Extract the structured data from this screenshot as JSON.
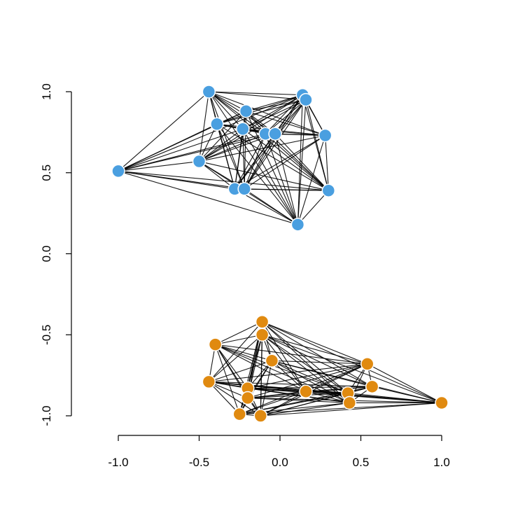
{
  "chart_data": {
    "type": "scatter",
    "title": "",
    "xlabel": "",
    "ylabel": "",
    "xlim": [
      -1.0,
      1.0
    ],
    "ylim": [
      -1.0,
      1.0
    ],
    "x_ticks": [
      -1.0,
      -0.5,
      0.0,
      0.5,
      1.0
    ],
    "y_ticks": [
      -1.0,
      -0.5,
      0.0,
      0.5,
      1.0
    ],
    "x_tick_labels": [
      "-1.0",
      "-0.5",
      "0.0",
      "0.5",
      "1.0"
    ],
    "y_tick_labels": [
      "-1.0",
      "-0.5",
      "0.0",
      "0.5",
      "1.0"
    ],
    "grid": false,
    "series": [
      {
        "color": "#4a9fe0",
        "nodes": [
          {
            "x": -0.44,
            "y": 1.0
          },
          {
            "x": 0.14,
            "y": 0.98
          },
          {
            "x": 0.16,
            "y": 0.95
          },
          {
            "x": -0.21,
            "y": 0.88
          },
          {
            "x": -0.39,
            "y": 0.8
          },
          {
            "x": -0.23,
            "y": 0.77
          },
          {
            "x": -0.09,
            "y": 0.74
          },
          {
            "x": -0.03,
            "y": 0.74
          },
          {
            "x": 0.28,
            "y": 0.73
          },
          {
            "x": -1.0,
            "y": 0.51
          },
          {
            "x": -0.5,
            "y": 0.57
          },
          {
            "x": -0.28,
            "y": 0.4
          },
          {
            "x": -0.22,
            "y": 0.4
          },
          {
            "x": 0.3,
            "y": 0.39
          },
          {
            "x": 0.11,
            "y": 0.18
          }
        ],
        "edges": [
          [
            0,
            1
          ],
          [
            0,
            2
          ],
          [
            0,
            3
          ],
          [
            0,
            4
          ],
          [
            0,
            5
          ],
          [
            0,
            6
          ],
          [
            0,
            7
          ],
          [
            0,
            8
          ],
          [
            0,
            9
          ],
          [
            0,
            10
          ],
          [
            0,
            11
          ],
          [
            0,
            12
          ],
          [
            0,
            13
          ],
          [
            0,
            14
          ],
          [
            1,
            2
          ],
          [
            1,
            3
          ],
          [
            1,
            4
          ],
          [
            1,
            5
          ],
          [
            1,
            6
          ],
          [
            1,
            7
          ],
          [
            1,
            8
          ],
          [
            1,
            9
          ],
          [
            1,
            10
          ],
          [
            1,
            11
          ],
          [
            1,
            12
          ],
          [
            1,
            13
          ],
          [
            1,
            14
          ],
          [
            2,
            3
          ],
          [
            2,
            4
          ],
          [
            2,
            5
          ],
          [
            2,
            6
          ],
          [
            2,
            7
          ],
          [
            2,
            8
          ],
          [
            2,
            10
          ],
          [
            2,
            11
          ],
          [
            2,
            12
          ],
          [
            2,
            13
          ],
          [
            2,
            14
          ],
          [
            3,
            4
          ],
          [
            3,
            5
          ],
          [
            3,
            6
          ],
          [
            3,
            7
          ],
          [
            3,
            8
          ],
          [
            3,
            9
          ],
          [
            3,
            10
          ],
          [
            3,
            11
          ],
          [
            3,
            12
          ],
          [
            3,
            13
          ],
          [
            3,
            14
          ],
          [
            4,
            5
          ],
          [
            4,
            6
          ],
          [
            4,
            7
          ],
          [
            4,
            8
          ],
          [
            4,
            9
          ],
          [
            4,
            10
          ],
          [
            4,
            11
          ],
          [
            4,
            12
          ],
          [
            4,
            13
          ],
          [
            4,
            14
          ],
          [
            5,
            6
          ],
          [
            5,
            7
          ],
          [
            5,
            8
          ],
          [
            5,
            9
          ],
          [
            5,
            10
          ],
          [
            5,
            11
          ],
          [
            5,
            12
          ],
          [
            5,
            13
          ],
          [
            5,
            14
          ],
          [
            6,
            7
          ],
          [
            6,
            8
          ],
          [
            6,
            9
          ],
          [
            6,
            10
          ],
          [
            6,
            11
          ],
          [
            6,
            12
          ],
          [
            6,
            13
          ],
          [
            6,
            14
          ],
          [
            7,
            8
          ],
          [
            7,
            9
          ],
          [
            7,
            10
          ],
          [
            7,
            11
          ],
          [
            7,
            12
          ],
          [
            7,
            13
          ],
          [
            7,
            14
          ],
          [
            8,
            10
          ],
          [
            8,
            11
          ],
          [
            8,
            12
          ],
          [
            8,
            13
          ],
          [
            8,
            14
          ],
          [
            9,
            10
          ],
          [
            9,
            11
          ],
          [
            9,
            12
          ],
          [
            9,
            13
          ],
          [
            9,
            14
          ],
          [
            10,
            11
          ],
          [
            10,
            12
          ],
          [
            10,
            13
          ],
          [
            10,
            14
          ],
          [
            11,
            12
          ],
          [
            11,
            13
          ],
          [
            11,
            14
          ],
          [
            12,
            13
          ],
          [
            12,
            14
          ],
          [
            13,
            14
          ]
        ]
      },
      {
        "color": "#e08a10",
        "nodes": [
          {
            "x": -0.11,
            "y": -0.42
          },
          {
            "x": -0.11,
            "y": -0.5
          },
          {
            "x": -0.4,
            "y": -0.56
          },
          {
            "x": -0.05,
            "y": -0.66
          },
          {
            "x": 0.54,
            "y": -0.68
          },
          {
            "x": -0.44,
            "y": -0.79
          },
          {
            "x": -0.2,
            "y": -0.83
          },
          {
            "x": 0.57,
            "y": -0.82
          },
          {
            "x": 0.16,
            "y": -0.85
          },
          {
            "x": 0.42,
            "y": -0.86
          },
          {
            "x": -0.2,
            "y": -0.89
          },
          {
            "x": 0.43,
            "y": -0.92
          },
          {
            "x": 1.0,
            "y": -0.92
          },
          {
            "x": -0.25,
            "y": -0.99
          },
          {
            "x": -0.12,
            "y": -1.0
          }
        ],
        "edges": [
          [
            0,
            1
          ],
          [
            0,
            2
          ],
          [
            0,
            3
          ],
          [
            0,
            4
          ],
          [
            0,
            5
          ],
          [
            0,
            6
          ],
          [
            0,
            7
          ],
          [
            0,
            8
          ],
          [
            0,
            9
          ],
          [
            0,
            10
          ],
          [
            0,
            11
          ],
          [
            0,
            12
          ],
          [
            0,
            13
          ],
          [
            0,
            14
          ],
          [
            1,
            2
          ],
          [
            1,
            3
          ],
          [
            1,
            4
          ],
          [
            1,
            5
          ],
          [
            1,
            6
          ],
          [
            1,
            7
          ],
          [
            1,
            8
          ],
          [
            1,
            9
          ],
          [
            1,
            10
          ],
          [
            1,
            11
          ],
          [
            1,
            12
          ],
          [
            1,
            13
          ],
          [
            1,
            14
          ],
          [
            2,
            3
          ],
          [
            2,
            4
          ],
          [
            2,
            5
          ],
          [
            2,
            6
          ],
          [
            2,
            8
          ],
          [
            2,
            9
          ],
          [
            2,
            10
          ],
          [
            2,
            11
          ],
          [
            2,
            13
          ],
          [
            2,
            14
          ],
          [
            3,
            4
          ],
          [
            3,
            5
          ],
          [
            3,
            6
          ],
          [
            3,
            7
          ],
          [
            3,
            8
          ],
          [
            3,
            9
          ],
          [
            3,
            10
          ],
          [
            3,
            11
          ],
          [
            3,
            12
          ],
          [
            3,
            13
          ],
          [
            3,
            14
          ],
          [
            4,
            5
          ],
          [
            4,
            6
          ],
          [
            4,
            7
          ],
          [
            4,
            8
          ],
          [
            4,
            9
          ],
          [
            4,
            10
          ],
          [
            4,
            11
          ],
          [
            4,
            12
          ],
          [
            4,
            13
          ],
          [
            4,
            14
          ],
          [
            5,
            6
          ],
          [
            5,
            7
          ],
          [
            5,
            8
          ],
          [
            5,
            9
          ],
          [
            5,
            10
          ],
          [
            5,
            11
          ],
          [
            5,
            12
          ],
          [
            5,
            13
          ],
          [
            5,
            14
          ],
          [
            6,
            7
          ],
          [
            6,
            8
          ],
          [
            6,
            9
          ],
          [
            6,
            10
          ],
          [
            6,
            11
          ],
          [
            6,
            12
          ],
          [
            6,
            13
          ],
          [
            6,
            14
          ],
          [
            7,
            8
          ],
          [
            7,
            9
          ],
          [
            7,
            10
          ],
          [
            7,
            11
          ],
          [
            7,
            12
          ],
          [
            7,
            13
          ],
          [
            7,
            14
          ],
          [
            8,
            9
          ],
          [
            8,
            10
          ],
          [
            8,
            11
          ],
          [
            8,
            12
          ],
          [
            8,
            13
          ],
          [
            8,
            14
          ],
          [
            9,
            10
          ],
          [
            9,
            11
          ],
          [
            9,
            12
          ],
          [
            9,
            13
          ],
          [
            9,
            14
          ],
          [
            10,
            11
          ],
          [
            10,
            12
          ],
          [
            10,
            13
          ],
          [
            10,
            14
          ],
          [
            11,
            12
          ],
          [
            11,
            13
          ],
          [
            11,
            14
          ],
          [
            12,
            13
          ],
          [
            12,
            14
          ],
          [
            13,
            14
          ]
        ]
      }
    ]
  }
}
